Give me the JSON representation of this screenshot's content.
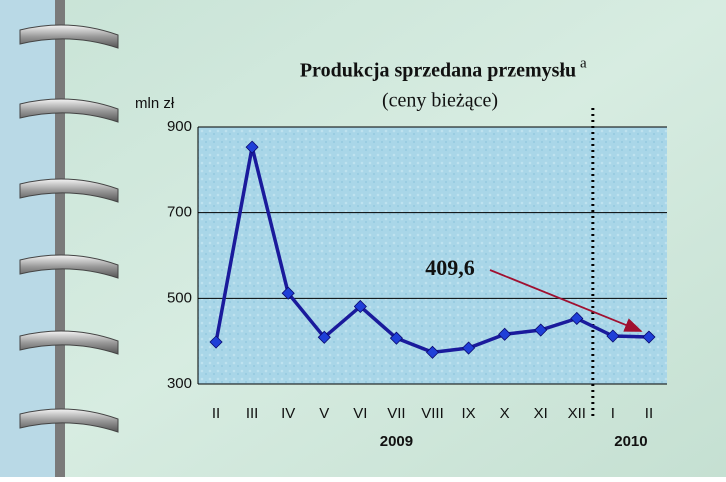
{
  "chart_data": {
    "type": "line",
    "title": "Produkcja sprzedana przemysłu",
    "title_note": "a",
    "subtitle": "(ceny bieżące)",
    "y_label": "mln zł",
    "categories": [
      "II",
      "III",
      "IV",
      "V",
      "VI",
      "VII",
      "VIII",
      "IX",
      "X",
      "XI",
      "XII",
      "I",
      "II"
    ],
    "groups": [
      {
        "label": "2009",
        "start": 0,
        "end": 10
      },
      {
        "label": "2010",
        "start": 11,
        "end": 12
      }
    ],
    "series": [
      {
        "name": "Produkcja sprzedana przemysłu",
        "color": "#1a1a9c",
        "marker_color": "#1f3fd8",
        "values": [
          398,
          853,
          512,
          409,
          481,
          407,
          374,
          384,
          416,
          426,
          453,
          412,
          409.6
        ],
        "value_labels": [
          null,
          null,
          null,
          null,
          null,
          null,
          null,
          null,
          null,
          null,
          null,
          null,
          "409,6"
        ]
      }
    ],
    "ylim": [
      300,
      900
    ],
    "yticks": [
      300,
      500,
      700,
      900
    ],
    "grid": true
  }
}
